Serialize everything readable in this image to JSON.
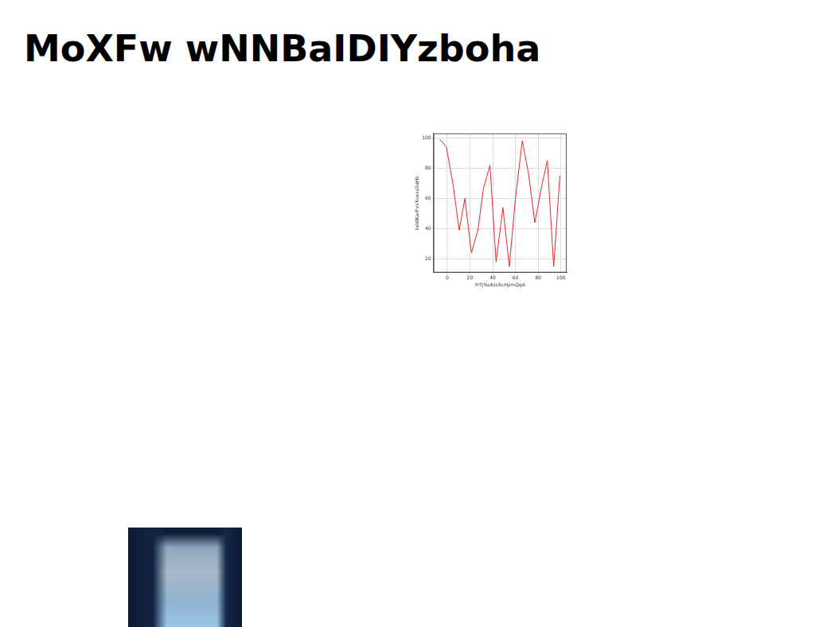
{
  "title": "MoXFw wNNBaIDIYzboha",
  "chart_data": {
    "type": "line",
    "x_label": "FrTjYudUcRcHjimQqA",
    "y_label": "beWKarFvvXvaxuSaHb",
    "x": [
      -6.4,
      -0.7,
      5,
      10.6,
      15.6,
      21.3,
      27,
      32,
      37.6,
      43,
      49,
      54.6,
      60,
      66,
      71.6,
      77,
      83,
      88,
      93.6,
      99
    ],
    "values": [
      99,
      94,
      70,
      39,
      60,
      24,
      39,
      67,
      82,
      18,
      54,
      15,
      60,
      98,
      76,
      44,
      68,
      85,
      15,
      75
    ],
    "color": "#e8262b",
    "xlim": [
      -12,
      105
    ],
    "xticks": [
      0,
      20,
      40,
      60,
      80,
      100
    ],
    "ylim": [
      11,
      103
    ],
    "yticks": [
      20,
      40,
      60,
      80,
      100
    ],
    "grid": true
  }
}
